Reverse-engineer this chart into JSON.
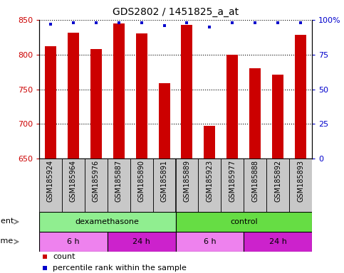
{
  "title": "GDS2802 / 1451825_a_at",
  "samples": [
    "GSM185924",
    "GSM185964",
    "GSM185976",
    "GSM185887",
    "GSM185890",
    "GSM185891",
    "GSM185889",
    "GSM185923",
    "GSM185977",
    "GSM185888",
    "GSM185892",
    "GSM185893"
  ],
  "bar_values": [
    812,
    832,
    808,
    845,
    831,
    759,
    843,
    697,
    800,
    780,
    771,
    828
  ],
  "percentile_values": [
    97,
    98,
    98,
    98,
    98,
    96,
    98,
    95,
    98,
    98,
    98,
    98
  ],
  "ylim_left": [
    650,
    850
  ],
  "ylim_right": [
    0,
    100
  ],
  "yticks_left": [
    650,
    700,
    750,
    800,
    850
  ],
  "yticks_right": [
    0,
    25,
    50,
    75,
    100
  ],
  "bar_color": "#cc0000",
  "dot_color": "#0000cc",
  "agent_labels": [
    {
      "label": "dexamethasone",
      "start": 0,
      "end": 6,
      "color": "#90ee90"
    },
    {
      "label": "control",
      "start": 6,
      "end": 12,
      "color": "#66dd44"
    }
  ],
  "time_labels": [
    {
      "label": "6 h",
      "start": 0,
      "end": 3,
      "color": "#ee82ee"
    },
    {
      "label": "24 h",
      "start": 3,
      "end": 6,
      "color": "#cc22cc"
    },
    {
      "label": "6 h",
      "start": 6,
      "end": 9,
      "color": "#ee82ee"
    },
    {
      "label": "24 h",
      "start": 9,
      "end": 12,
      "color": "#cc22cc"
    }
  ],
  "agent_row_label": "agent",
  "time_row_label": "time",
  "legend_count_color": "#cc0000",
  "legend_pct_color": "#0000cc",
  "tick_label_color_left": "#cc0000",
  "tick_label_color_right": "#0000cc",
  "xtick_bg_color": "#c8c8c8",
  "n_samples": 12,
  "bar_width": 0.5
}
